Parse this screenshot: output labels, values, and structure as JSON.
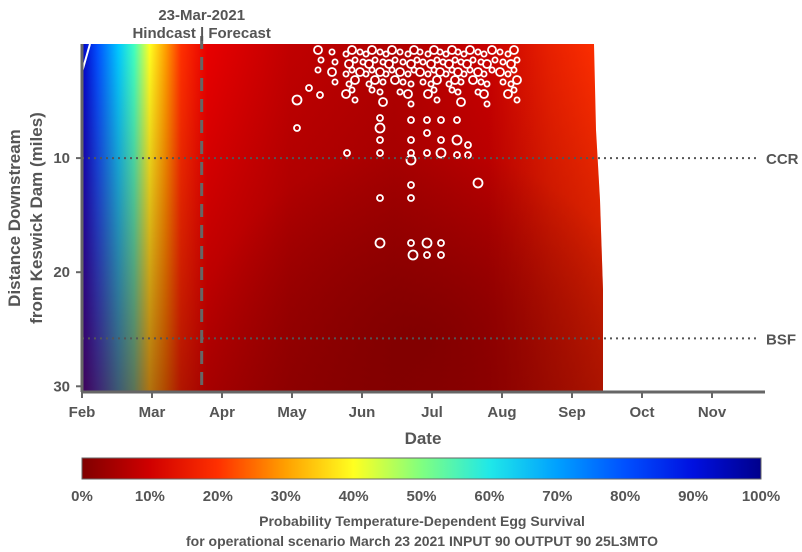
{
  "chart_data": {
    "type": "heatmap",
    "xlabel": "Date",
    "ylabel": [
      "Distance Downstream",
      "from Keswick Dam (miles)"
    ],
    "x_ticks": [
      "Feb",
      "Mar",
      "Apr",
      "May",
      "Jun",
      "Jul",
      "Aug",
      "Sep",
      "Oct",
      "Nov"
    ],
    "x_range": [
      "Feb",
      "Nov"
    ],
    "y_ticks": [
      10,
      20,
      30
    ],
    "ylim": [
      0,
      30.5
    ],
    "y_reversed": true,
    "hindcast_forecast_line": {
      "date_label": "23-Mar-2021",
      "label": "Hindcast | Forecast",
      "x": "Mar 23"
    },
    "reference_lines": [
      {
        "label": "CCR",
        "y": 10
      },
      {
        "label": "BSF",
        "y": 25.8
      }
    ],
    "survival_field_note": "Survival is high (near 100%) at start of Feb, dropping to about 0-10% by late March; low through summer (darkest near 25-30 miles, Jun-Aug); data ends mid-Sep",
    "survival_by_month_near_dam": [
      {
        "x": "Feb",
        "y": 0,
        "value": 90
      },
      {
        "x": "Mar",
        "y": 0,
        "value": 30
      },
      {
        "x": "Apr",
        "y": 0,
        "value": 12
      },
      {
        "x": "May",
        "y": 0,
        "value": 8
      },
      {
        "x": "Jun",
        "y": 0,
        "value": 6
      },
      {
        "x": "Jul",
        "y": 0,
        "value": 6
      },
      {
        "x": "Aug",
        "y": 0,
        "value": 8
      },
      {
        "x": "Sep",
        "y": 0,
        "value": 12
      }
    ],
    "colorbar": {
      "min": 0,
      "max": 100,
      "ticks": [
        "0%",
        "10%",
        "20%",
        "30%",
        "40%",
        "50%",
        "60%",
        "70%",
        "80%",
        "90%",
        "100%"
      ],
      "colormap": "jet-reversed",
      "title_line1": "Probability Temperature-Dependent Egg Survival",
      "title_line2": "for operational scenario March 23 2021 INPUT 90 OUTPUT 90 25L3MTO"
    },
    "redd_markers_note": "white circles mark redd (nest) observations, concentrated Jun-Aug within first ~20 miles",
    "grid": false
  },
  "colors": {
    "axis": "#666666",
    "text": "#555555",
    "marker": "#ffffff"
  }
}
